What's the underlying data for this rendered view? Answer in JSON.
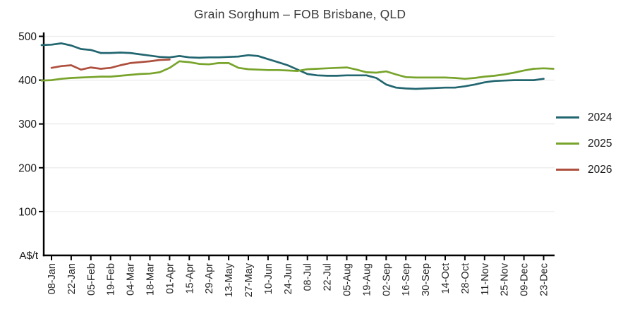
{
  "chart_data": {
    "type": "line",
    "title": "Grain Sorghum – FOB Brisbane, QLD",
    "y_axis_unit_label": "A$/t",
    "ylim": [
      0,
      500
    ],
    "y_ticks": [
      100,
      200,
      300,
      400,
      500
    ],
    "grid": "horizontal-only",
    "legend_position": "right-outside",
    "tick_interval": "fortnightly",
    "data_interval": "weekly",
    "x_tick_labels": [
      "08-Jan",
      "22-Jan",
      "05-Feb",
      "19-Feb",
      "04-Mar",
      "18-Mar",
      "01-Apr",
      "15-Apr",
      "29-Apr",
      "13-May",
      "27-May",
      "10-Jun",
      "24-Jun",
      "08-Jul",
      "22-Jul",
      "05-Aug",
      "19-Aug",
      "02-Sep",
      "16-Sep",
      "30-Sep",
      "14-Oct",
      "28-Oct",
      "11-Nov",
      "25-Nov",
      "09-Dec",
      "23-Dec"
    ],
    "series": [
      {
        "name": "2024",
        "color": "#226670",
        "start_week": -1,
        "values": [
          480,
          481,
          484,
          479,
          471,
          469,
          462,
          462,
          463,
          462,
          459,
          456,
          453,
          452,
          455,
          452,
          451,
          452,
          452,
          453,
          454,
          457,
          455,
          448,
          441,
          434,
          424,
          414,
          411,
          410,
          410,
          411,
          411,
          411,
          405,
          390,
          383,
          381,
          380,
          381,
          382,
          383,
          383,
          386,
          390,
          395,
          398,
          399,
          400,
          400,
          400,
          403
        ]
      },
      {
        "name": "2025",
        "color": "#78a42c",
        "start_week": -1,
        "values": [
          399,
          400,
          403,
          405,
          406,
          407,
          408,
          408,
          410,
          412,
          414,
          415,
          418,
          428,
          443,
          441,
          437,
          436,
          439,
          439,
          428,
          425,
          424,
          423,
          423,
          422,
          421,
          425,
          426,
          427,
          428,
          429,
          424,
          418,
          417,
          420,
          413,
          407,
          406,
          406,
          406,
          406,
          405,
          403,
          405,
          408,
          410,
          413,
          417,
          422,
          426,
          427,
          426
        ]
      },
      {
        "name": "2026",
        "color": "#ae4f3e",
        "start_week": 0,
        "values": [
          428,
          432,
          434,
          424,
          429,
          426,
          428,
          434,
          439,
          441,
          443,
          446,
          447
        ]
      }
    ]
  }
}
